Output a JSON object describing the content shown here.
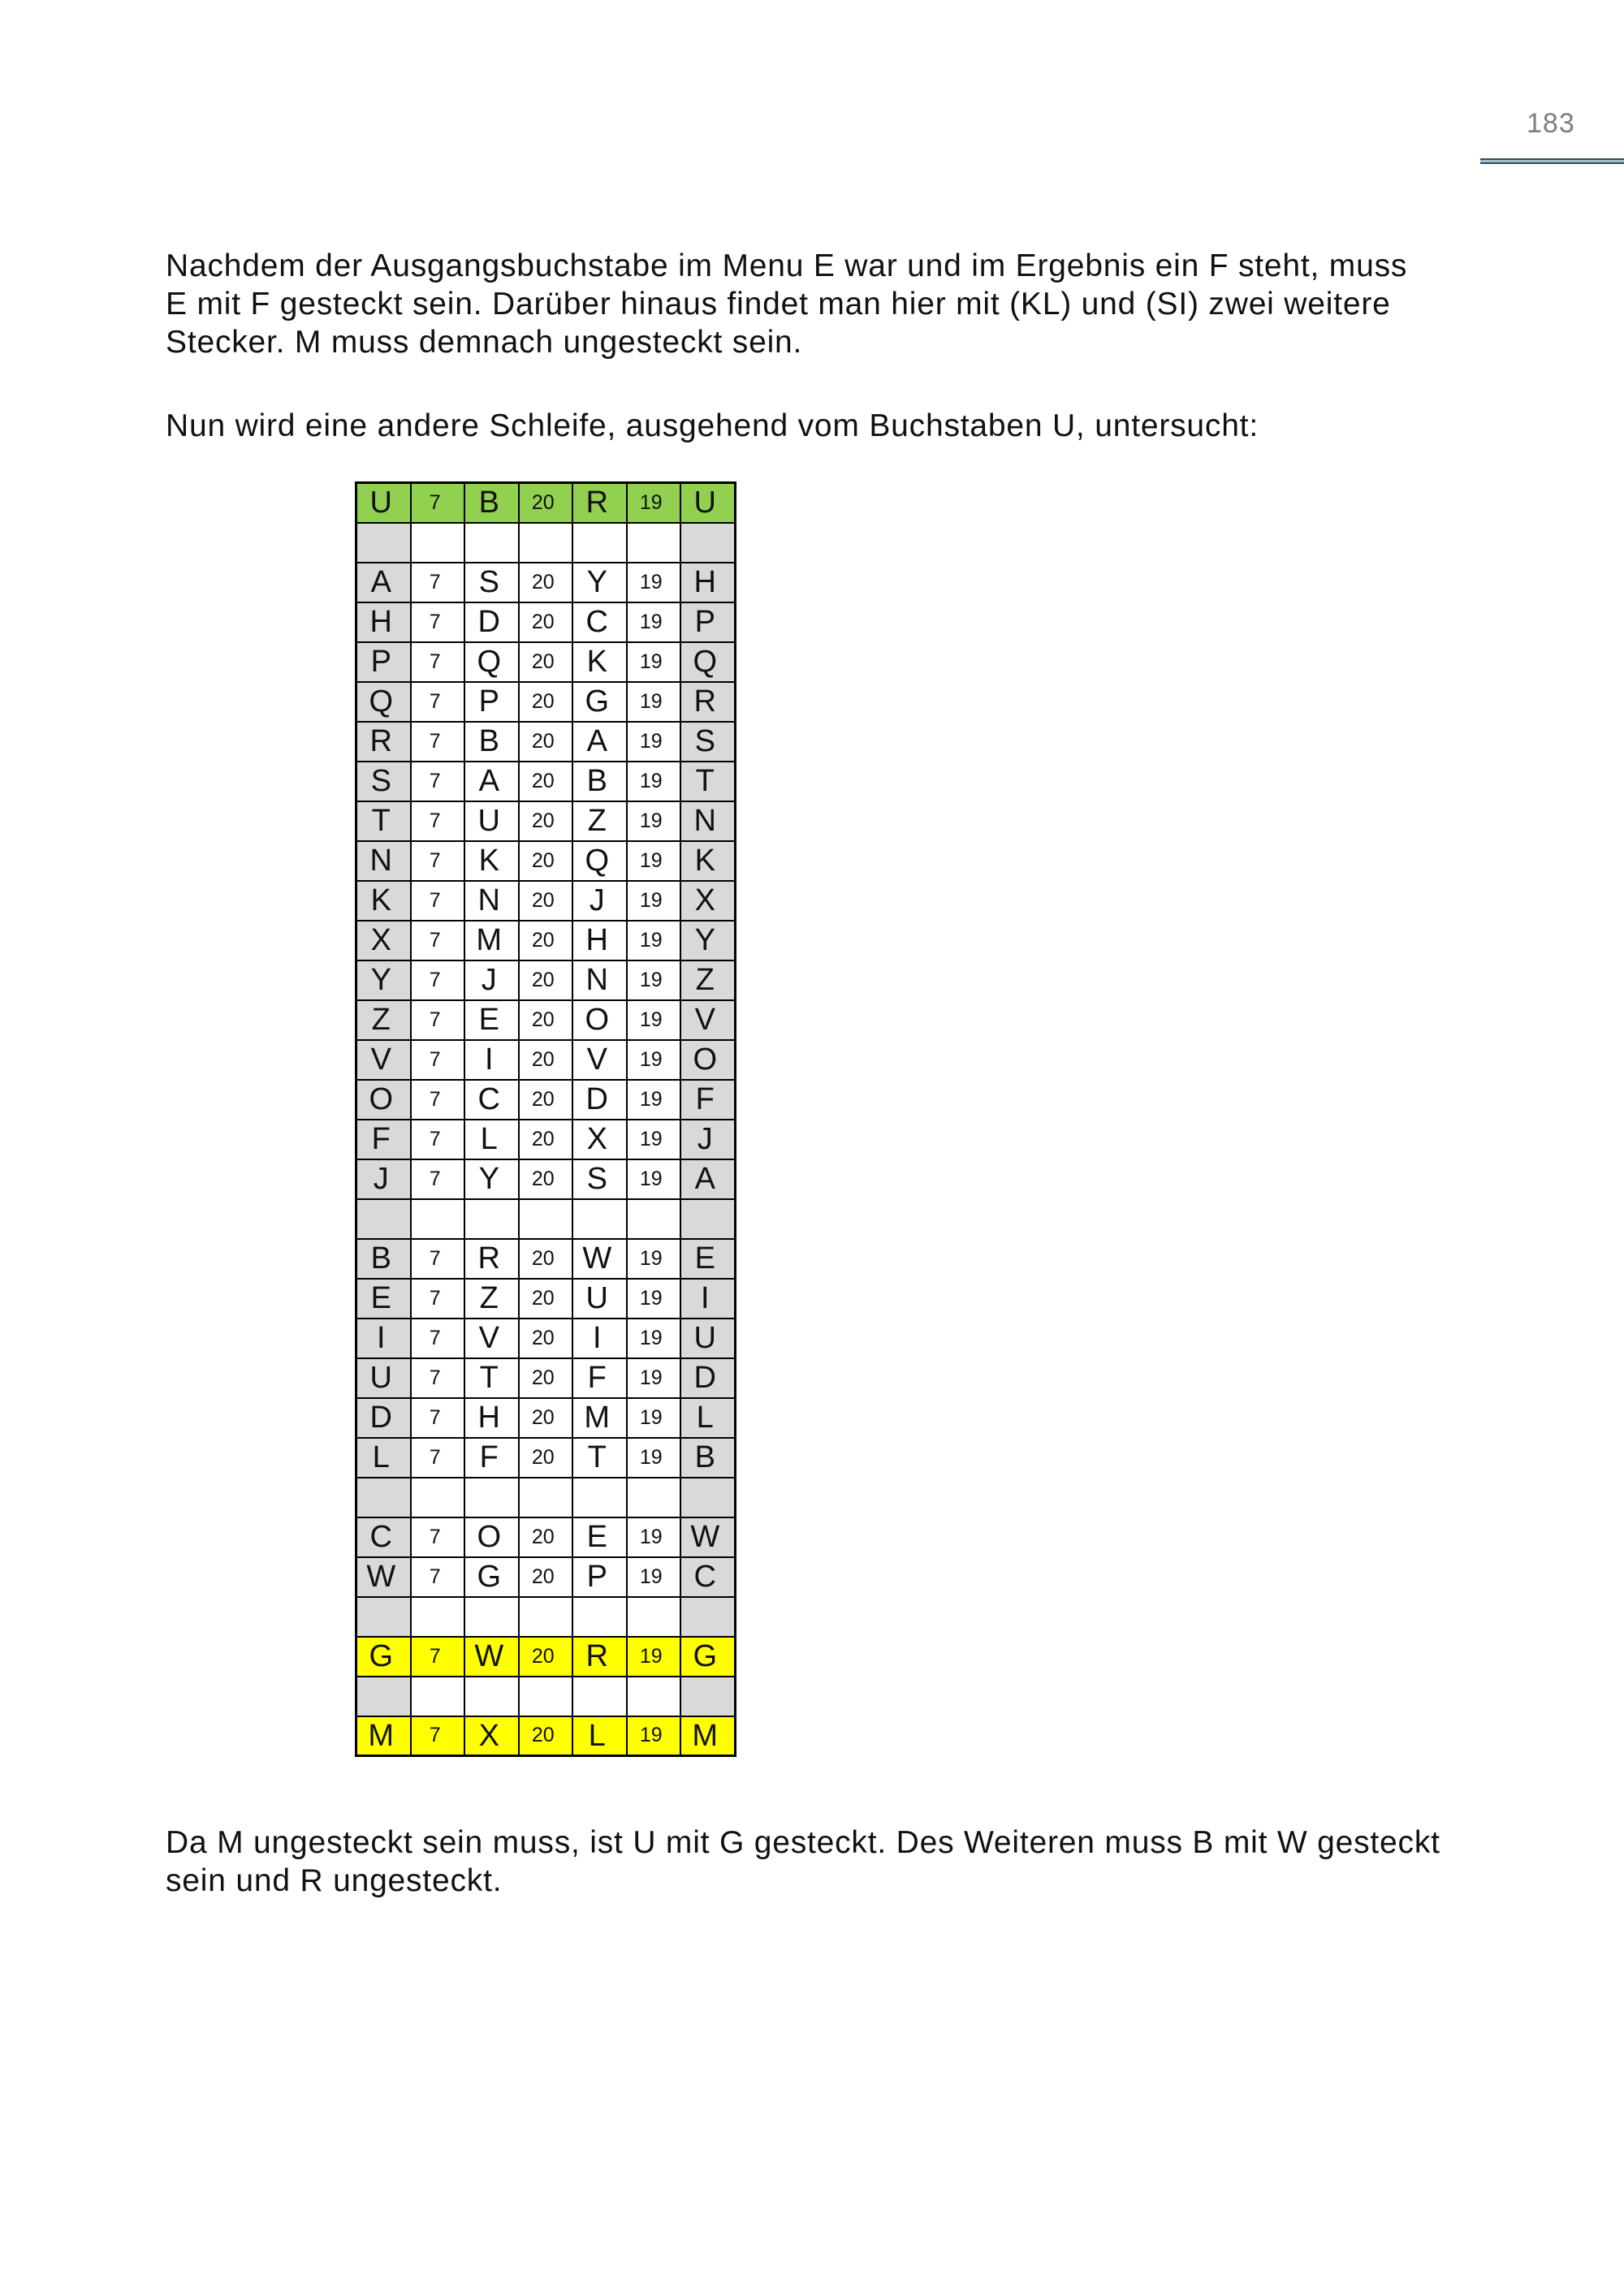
{
  "page": {
    "number": "183"
  },
  "colors": {
    "text": "#111111",
    "page_number_grey": "#7b7f82",
    "rule_dark": "#2e4d57",
    "rule_light": "#a3bdc6",
    "table_green": "#92d050",
    "table_yellow": "#ffff00",
    "table_grey": "#d9d9d9"
  },
  "paragraphs": {
    "intro": {
      "lines": [
        "Nachdem der Ausgangsbuchstabe im Menu E war und im Ergebnis ein F steht, muss",
        "E mit F gesteckt sein. Darüber hinaus findet man hier mit (KL) und (SI) zwei weitere",
        "Stecker. M muss demnach ungesteckt sein."
      ]
    },
    "loop_intro": {
      "lines": [
        "Nun wird eine andere Schleife, ausgehend vom Buchstaben U, untersucht:"
      ]
    },
    "conclusion": {
      "lines": [
        "Da M ungesteckt sein muss, ist U mit G gesteckt. Des Weiteren muss B mit W gesteckt",
        "sein und R ungesteckt."
      ]
    }
  },
  "table": {
    "columns": 7,
    "rows": [
      {
        "type": "green",
        "cells": [
          "U",
          "7",
          "B",
          "20",
          "R",
          "19",
          "U"
        ]
      },
      {
        "type": "empty",
        "cells": [
          "",
          "",
          "",
          "",
          "",
          "",
          ""
        ]
      },
      {
        "type": "normal",
        "cells": [
          "A",
          "7",
          "S",
          "20",
          "Y",
          "19",
          "H"
        ]
      },
      {
        "type": "normal",
        "cells": [
          "H",
          "7",
          "D",
          "20",
          "C",
          "19",
          "P"
        ]
      },
      {
        "type": "normal",
        "cells": [
          "P",
          "7",
          "Q",
          "20",
          "K",
          "19",
          "Q"
        ]
      },
      {
        "type": "normal",
        "cells": [
          "Q",
          "7",
          "P",
          "20",
          "G",
          "19",
          "R"
        ]
      },
      {
        "type": "normal",
        "cells": [
          "R",
          "7",
          "B",
          "20",
          "A",
          "19",
          "S"
        ]
      },
      {
        "type": "normal",
        "cells": [
          "S",
          "7",
          "A",
          "20",
          "B",
          "19",
          "T"
        ]
      },
      {
        "type": "normal",
        "cells": [
          "T",
          "7",
          "U",
          "20",
          "Z",
          "19",
          "N"
        ]
      },
      {
        "type": "normal",
        "cells": [
          "N",
          "7",
          "K",
          "20",
          "Q",
          "19",
          "K"
        ]
      },
      {
        "type": "normal",
        "cells": [
          "K",
          "7",
          "N",
          "20",
          "J",
          "19",
          "X"
        ]
      },
      {
        "type": "normal",
        "cells": [
          "X",
          "7",
          "M",
          "20",
          "H",
          "19",
          "Y"
        ]
      },
      {
        "type": "normal",
        "cells": [
          "Y",
          "7",
          "J",
          "20",
          "N",
          "19",
          "Z"
        ]
      },
      {
        "type": "normal",
        "cells": [
          "Z",
          "7",
          "E",
          "20",
          "O",
          "19",
          "V"
        ]
      },
      {
        "type": "normal",
        "cells": [
          "V",
          "7",
          "I",
          "20",
          "V",
          "19",
          "O"
        ]
      },
      {
        "type": "normal",
        "cells": [
          "O",
          "7",
          "C",
          "20",
          "D",
          "19",
          "F"
        ]
      },
      {
        "type": "normal",
        "cells": [
          "F",
          "7",
          "L",
          "20",
          "X",
          "19",
          "J"
        ]
      },
      {
        "type": "normal",
        "cells": [
          "J",
          "7",
          "Y",
          "20",
          "S",
          "19",
          "A"
        ]
      },
      {
        "type": "empty",
        "cells": [
          "",
          "",
          "",
          "",
          "",
          "",
          ""
        ]
      },
      {
        "type": "normal",
        "cells": [
          "B",
          "7",
          "R",
          "20",
          "W",
          "19",
          "E"
        ]
      },
      {
        "type": "normal",
        "cells": [
          "E",
          "7",
          "Z",
          "20",
          "U",
          "19",
          "I"
        ]
      },
      {
        "type": "normal",
        "cells": [
          "I",
          "7",
          "V",
          "20",
          "I",
          "19",
          "U"
        ]
      },
      {
        "type": "normal",
        "cells": [
          "U",
          "7",
          "T",
          "20",
          "F",
          "19",
          "D"
        ]
      },
      {
        "type": "normal",
        "cells": [
          "D",
          "7",
          "H",
          "20",
          "M",
          "19",
          "L"
        ]
      },
      {
        "type": "normal",
        "cells": [
          "L",
          "7",
          "F",
          "20",
          "T",
          "19",
          "B"
        ]
      },
      {
        "type": "empty",
        "cells": [
          "",
          "",
          "",
          "",
          "",
          "",
          ""
        ]
      },
      {
        "type": "normal",
        "cells": [
          "C",
          "7",
          "O",
          "20",
          "E",
          "19",
          "W"
        ]
      },
      {
        "type": "normal",
        "cells": [
          "W",
          "7",
          "G",
          "20",
          "P",
          "19",
          "C"
        ]
      },
      {
        "type": "empty",
        "cells": [
          "",
          "",
          "",
          "",
          "",
          "",
          ""
        ]
      },
      {
        "type": "yellow",
        "cells": [
          "G",
          "7",
          "W",
          "20",
          "R",
          "19",
          "G"
        ]
      },
      {
        "type": "empty",
        "cells": [
          "",
          "",
          "",
          "",
          "",
          "",
          ""
        ]
      },
      {
        "type": "yellow",
        "cells": [
          "M",
          "7",
          "X",
          "20",
          "L",
          "19",
          "M"
        ]
      }
    ]
  }
}
